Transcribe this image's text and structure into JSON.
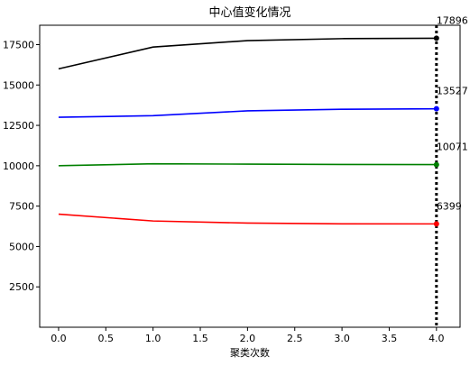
{
  "chart_data": {
    "type": "line",
    "title": "中心值变化情况",
    "xlabel": "聚类次数",
    "ylabel": "",
    "x": [
      0,
      1,
      2,
      3,
      4
    ],
    "xlim": [
      -0.2,
      4.25
    ],
    "ylim": [
      0,
      18700
    ],
    "x_ticks": [
      "0.0",
      "0.5",
      "1.0",
      "1.5",
      "2.0",
      "2.5",
      "3.0",
      "3.5",
      "4.0"
    ],
    "x_tick_values": [
      0,
      0.5,
      1,
      1.5,
      2,
      2.5,
      3,
      3.5,
      4
    ],
    "y_ticks": [
      "2500",
      "5000",
      "7500",
      "10000",
      "12500",
      "15000",
      "17500"
    ],
    "y_tick_values": [
      2500,
      5000,
      7500,
      10000,
      12500,
      15000,
      17500
    ],
    "grid": false,
    "series": [
      {
        "color": "#000000",
        "values": [
          16000,
          17350,
          17750,
          17870,
          17896
        ],
        "end_label": "17896"
      },
      {
        "color": "#0000ff",
        "values": [
          13000,
          13100,
          13400,
          13500,
          13527
        ],
        "end_label": "13527"
      },
      {
        "color": "#008000",
        "values": [
          10000,
          10120,
          10100,
          10080,
          10071
        ],
        "end_label": "10071"
      },
      {
        "color": "#ff0000",
        "values": [
          7000,
          6580,
          6450,
          6400,
          6399
        ],
        "end_label": "6399"
      }
    ],
    "vline": {
      "x": 4,
      "style": "dotted",
      "color": "#000000"
    }
  }
}
